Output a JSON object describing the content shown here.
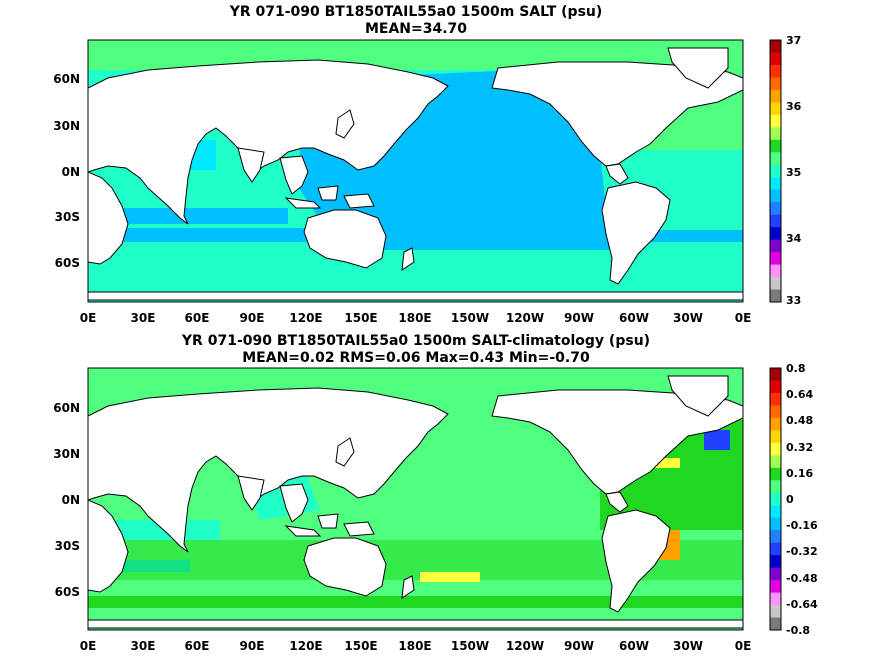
{
  "maps": [
    {
      "title": "YR 071-090 BT1850TAIL55a0 1500m SALT (psu)",
      "stats": "MEAN=34.70",
      "x_ticks": [
        "0E",
        "30E",
        "60E",
        "90E",
        "120E",
        "150E",
        "180E",
        "150W",
        "120W",
        "90W",
        "60W",
        "30W",
        "0E"
      ],
      "y_ticks": [
        "60N",
        "30N",
        "0N",
        "30S",
        "60S"
      ],
      "colorbar": {
        "labels": [
          "37",
          "36",
          "35",
          "34",
          "33"
        ],
        "colors": [
          "#a50000",
          "#e00000",
          "#ff3000",
          "#ff6a00",
          "#ffa000",
          "#ffd400",
          "#ffff40",
          "#a0ff50",
          "#20d820",
          "#50ff80",
          "#20ffc8",
          "#00e8ff",
          "#00bfff",
          "#2080ff",
          "#2040ff",
          "#0000c8",
          "#8000d0",
          "#e000e0",
          "#ff90ff",
          "#c8c8c8",
          "#7a7a7a"
        ]
      }
    },
    {
      "title": "YR 071-090 BT1850TAIL55a0 1500m SALT-climatology (psu)",
      "stats": "MEAN=0.02   RMS=0.06   Max=0.43   Min=-0.70",
      "x_ticks": [
        "0E",
        "30E",
        "60E",
        "90E",
        "120E",
        "150E",
        "180E",
        "150W",
        "120W",
        "90W",
        "60W",
        "30W",
        "0E"
      ],
      "y_ticks": [
        "60N",
        "30N",
        "0N",
        "30S",
        "60S"
      ],
      "colorbar": {
        "labels": [
          "0.8",
          "0.64",
          "0.48",
          "0.32",
          "0.16",
          "0",
          "-0.16",
          "-0.32",
          "-0.48",
          "-0.64",
          "-0.8"
        ],
        "colors": [
          "#a50000",
          "#e00000",
          "#ff3000",
          "#ff6a00",
          "#ffa000",
          "#ffd400",
          "#ffff40",
          "#a0ff50",
          "#20d820",
          "#50ff80",
          "#20ffc8",
          "#00e8ff",
          "#00bfff",
          "#2080ff",
          "#2040ff",
          "#0000c8",
          "#8000d0",
          "#e000e0",
          "#ff90ff",
          "#c8c8c8",
          "#7a7a7a"
        ]
      }
    }
  ]
}
